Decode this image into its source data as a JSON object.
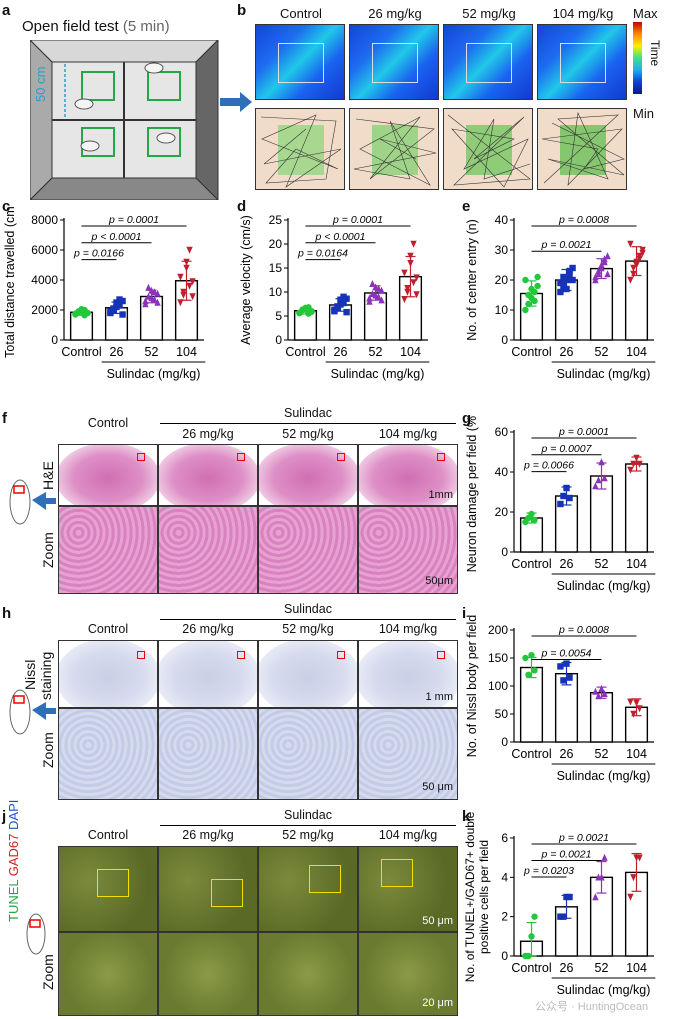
{
  "panel_labels": {
    "a": "a",
    "b": "b",
    "c": "c",
    "d": "d",
    "e": "e",
    "f": "f",
    "g": "g",
    "h": "h",
    "i": "i",
    "j": "j",
    "k": "k"
  },
  "panel_a": {
    "title": "Open field test",
    "title_note": "(5 min)",
    "dimension": "50 cm"
  },
  "panel_b": {
    "columns": [
      "Control",
      "26 mg/kg",
      "52 mg/kg",
      "104 mg/kg"
    ],
    "colorbar_max": "Max",
    "colorbar_label": "Time",
    "colorbar_min": "Min"
  },
  "histology": {
    "group_header": "Sulindac",
    "columns": [
      "Control",
      "26 mg/kg",
      "52 mg/kg",
      "104 mg/kg"
    ],
    "f_stain": "H&E",
    "f_zoom": "Zoom",
    "f_scale_top": "1mm",
    "f_scale_bottom": "50μm",
    "h_stain1": "Nissl",
    "h_stain2": "staining",
    "h_zoom": "Zoom",
    "h_scale_top": "1 mm",
    "h_scale_bottom": "50 μm",
    "j_label_tunel": "TUNEL",
    "j_label_gad": "GAD67",
    "j_label_dapi": "DAPI",
    "j_zoom": "Zoom",
    "j_scale_top": "50 μm",
    "j_scale_bottom": "20 μm"
  },
  "watermark": "公众号 · HuntingOcean",
  "chart_data": [
    {
      "id": "c",
      "type": "bar",
      "categories": [
        "Control",
        "26",
        "52",
        "104"
      ],
      "group_label": "Sulindac (mg/kg)",
      "ylabel": "Total distance travelled (cm)",
      "ylim": [
        0,
        8000
      ],
      "yticks": [
        0,
        2000,
        4000,
        6000,
        8000
      ],
      "values": [
        1850,
        2150,
        2900,
        3950
      ],
      "errors": [
        200,
        380,
        420,
        1300
      ],
      "colors": [
        "#22c73a",
        "#1633b8",
        "#8b33b8",
        "#c0202c"
      ],
      "brackets": [
        {
          "from": 0,
          "to": 1,
          "text": "p = 0.0166"
        },
        {
          "from": 0,
          "to": 2,
          "text": "p < 0.0001"
        },
        {
          "from": 0,
          "to": 3,
          "text": "p = 0.0001"
        }
      ],
      "points": [
        [
          1700,
          1850,
          1950,
          2000,
          1800,
          1750,
          1900,
          2050,
          1650,
          1800
        ],
        [
          1800,
          2100,
          2500,
          2300,
          2600,
          1900,
          2000,
          2200,
          2700,
          1700
        ],
        [
          2400,
          2900,
          3300,
          2700,
          3100,
          2600,
          3500,
          2800,
          3200,
          2500
        ],
        [
          2500,
          3200,
          4800,
          6000,
          3900,
          4200,
          3000,
          5200,
          3600,
          2900
        ]
      ]
    },
    {
      "id": "d",
      "type": "bar",
      "categories": [
        "Control",
        "26",
        "52",
        "104"
      ],
      "group_label": "Sulindac (mg/kg)",
      "ylabel": "Average velocity (cm/s)",
      "ylim": [
        0,
        25
      ],
      "yticks": [
        0,
        5,
        10,
        15,
        20,
        25
      ],
      "values": [
        6.1,
        7.3,
        9.8,
        13.2
      ],
      "errors": [
        0.7,
        1.3,
        1.5,
        4.2
      ],
      "colors": [
        "#22c73a",
        "#1633b8",
        "#8b33b8",
        "#c0202c"
      ],
      "brackets": [
        {
          "from": 0,
          "to": 1,
          "text": "p = 0.0164"
        },
        {
          "from": 0,
          "to": 2,
          "text": "p < 0.0001"
        },
        {
          "from": 0,
          "to": 3,
          "text": "p = 0.0001"
        }
      ],
      "points": [
        [
          5.7,
          6.2,
          6.5,
          6.8,
          5.9,
          5.6,
          6.3,
          6.7,
          5.5,
          6.0
        ],
        [
          6.0,
          7.0,
          8.4,
          7.7,
          8.6,
          6.3,
          6.7,
          7.4,
          9.0,
          5.8
        ],
        [
          8.0,
          9.6,
          11.0,
          9.0,
          10.3,
          8.7,
          11.7,
          9.3,
          10.7,
          8.3
        ],
        [
          8.5,
          10.8,
          16.0,
          20.0,
          13.0,
          14.0,
          10.0,
          17.5,
          12.0,
          9.5
        ]
      ]
    },
    {
      "id": "e",
      "type": "bar",
      "categories": [
        "Control",
        "26",
        "52",
        "104"
      ],
      "group_label": "Sulindac (mg/kg)",
      "ylabel": "No. of center entry (n)",
      "ylim": [
        0,
        40
      ],
      "yticks": [
        0,
        10,
        20,
        30,
        40
      ],
      "values": [
        15.5,
        20.0,
        23.8,
        26.3
      ],
      "errors": [
        4.2,
        3.5,
        3.3,
        4.8
      ],
      "colors": [
        "#22c73a",
        "#1633b8",
        "#8b33b8",
        "#c0202c"
      ],
      "brackets": [
        {
          "from": 0,
          "to": 2,
          "text": "p = 0.0021"
        },
        {
          "from": 0,
          "to": 3,
          "text": "p = 0.0008"
        }
      ],
      "points": [
        [
          10,
          12,
          14,
          16,
          18,
          20,
          15,
          17,
          13,
          21
        ],
        [
          16,
          18,
          20,
          22,
          24,
          19,
          21,
          17,
          23,
          20
        ],
        [
          20,
          22,
          24,
          26,
          28,
          21,
          23,
          25,
          27,
          22
        ],
        [
          20,
          24,
          26,
          28,
          30,
          32,
          22,
          25,
          27,
          29
        ]
      ]
    },
    {
      "id": "g",
      "type": "bar",
      "categories": [
        "Control",
        "26",
        "52",
        "104"
      ],
      "group_label": "Sulindac (mg/kg)",
      "ylabel": "Neuron damage per field (%)",
      "ylim": [
        0,
        60
      ],
      "yticks": [
        0,
        20,
        40,
        60
      ],
      "values": [
        17,
        28,
        38,
        44
      ],
      "errors": [
        2.5,
        4.5,
        6.5,
        3.5
      ],
      "colors": [
        "#22c73a",
        "#1633b8",
        "#8b33b8",
        "#c0202c"
      ],
      "brackets": [
        {
          "from": 0,
          "to": 1,
          "text": "p = 0.0066"
        },
        {
          "from": 0,
          "to": 2,
          "text": "p = 0.0007"
        },
        {
          "from": 0,
          "to": 3,
          "text": "p = 0.0001"
        }
      ],
      "points": [
        [
          15,
          17,
          19,
          16
        ],
        [
          24,
          28,
          32,
          27
        ],
        [
          33,
          36,
          45,
          37
        ],
        [
          41,
          44,
          47,
          44
        ]
      ]
    },
    {
      "id": "i",
      "type": "bar",
      "categories": [
        "Control",
        "26",
        "52",
        "104"
      ],
      "group_label": "Sulindac (mg/kg)",
      "ylabel": "No. of Nissl body per field",
      "ylim": [
        0,
        200
      ],
      "yticks": [
        0,
        50,
        100,
        150,
        200
      ],
      "values": [
        133,
        122,
        88,
        62
      ],
      "errors": [
        18,
        20,
        10,
        15
      ],
      "colors": [
        "#22c73a",
        "#1633b8",
        "#8b33b8",
        "#c0202c"
      ],
      "brackets": [
        {
          "from": 0,
          "to": 2,
          "text": "p = 0.0054"
        },
        {
          "from": 0,
          "to": 3,
          "text": "p = 0.0008"
        }
      ],
      "points": [
        [
          150,
          120,
          155,
          128
        ],
        [
          135,
          110,
          140,
          115
        ],
        [
          90,
          82,
          95,
          86
        ],
        [
          72,
          50,
          70,
          60
        ]
      ]
    },
    {
      "id": "k",
      "type": "bar",
      "categories": [
        "Control",
        "26",
        "52",
        "104"
      ],
      "group_label": "Sulindac (mg/kg)",
      "ylabel": "No. of TUNEL+/GAD67+ double positive cells per field",
      "ylim": [
        0,
        6
      ],
      "yticks": [
        0,
        2,
        4,
        6
      ],
      "values": [
        0.75,
        2.5,
        4.0,
        4.25
      ],
      "errors": [
        0.95,
        0.58,
        0.8,
        0.96
      ],
      "colors": [
        "#22c73a",
        "#1633b8",
        "#8b33b8",
        "#c0202c"
      ],
      "brackets": [
        {
          "from": 0,
          "to": 1,
          "text": "p = 0.0203"
        },
        {
          "from": 0,
          "to": 2,
          "text": "p = 0.0021"
        },
        {
          "from": 0,
          "to": 3,
          "text": "p = 0.0021"
        }
      ],
      "points": [
        [
          0,
          0,
          1,
          2
        ],
        [
          2,
          2,
          3,
          3
        ],
        [
          3,
          4,
          4,
          5
        ],
        [
          3,
          4,
          5,
          5
        ]
      ]
    }
  ]
}
